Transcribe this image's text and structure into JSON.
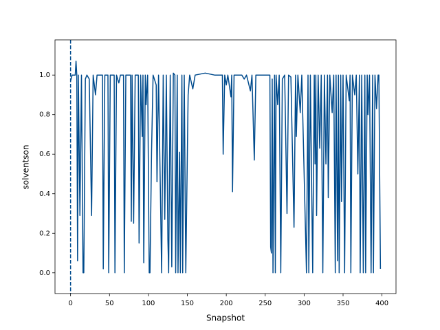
{
  "chart_data": {
    "type": "line",
    "xlabel": "Snapshot",
    "ylabel": "solventson",
    "x": [
      0,
      2,
      6,
      7,
      8,
      9,
      10,
      12,
      14,
      16,
      17,
      19,
      21,
      24,
      27,
      29,
      32,
      34,
      41,
      42,
      44,
      48,
      49,
      51,
      56,
      57,
      59,
      62,
      64,
      68,
      69,
      71,
      77,
      78,
      79,
      81,
      83,
      87,
      88,
      90,
      92,
      93,
      94,
      96,
      97,
      99,
      101,
      102,
      104,
      106,
      110,
      111,
      113,
      117,
      119,
      121,
      123,
      125,
      126,
      128,
      130,
      132,
      134,
      135,
      137,
      138,
      140,
      141,
      143,
      144,
      146,
      148,
      151,
      153,
      157,
      160,
      173,
      185,
      195,
      196,
      198,
      200,
      202,
      206,
      207,
      208,
      210,
      220,
      223,
      226,
      231,
      233,
      236,
      238,
      256,
      257,
      258,
      259,
      260,
      262,
      263,
      264,
      266,
      268,
      270,
      272,
      275,
      278,
      280,
      283,
      287,
      289,
      290,
      292,
      295,
      297,
      303,
      305,
      306,
      308,
      311,
      313,
      314,
      315,
      316,
      318,
      320,
      322,
      324,
      326,
      328,
      330,
      331,
      333,
      336,
      338,
      340,
      341,
      343,
      344,
      345,
      347,
      348,
      350,
      352,
      354,
      358,
      359,
      360,
      362,
      365,
      367,
      369,
      371,
      372,
      374,
      376,
      378,
      379,
      381,
      382,
      384,
      386,
      388,
      389,
      391,
      393,
      395,
      396,
      398
    ],
    "series": [
      {
        "color": "#004b8d",
        "values": [
          0.97,
          1.0,
          1.0,
          1.07,
          1.0,
          0.06,
          1.0,
          0.29,
          1.0,
          0.0,
          0.0,
          0.98,
          1.0,
          0.98,
          0.29,
          1.0,
          0.9,
          1.0,
          1.0,
          0.02,
          1.0,
          1.0,
          0.0,
          1.0,
          1.0,
          0.0,
          1.0,
          0.96,
          1.0,
          1.0,
          0.0,
          1.0,
          1.0,
          0.26,
          1.0,
          0.25,
          1.0,
          1.0,
          0.15,
          1.0,
          0.69,
          1.0,
          0.05,
          1.0,
          0.85,
          1.0,
          0.0,
          0.0,
          0.61,
          1.0,
          0.95,
          0.46,
          1.0,
          0.0,
          1.0,
          0.27,
          1.0,
          0.17,
          0.0,
          1.0,
          0.03,
          1.01,
          1.0,
          0.0,
          1.0,
          0.0,
          0.61,
          0.0,
          1.0,
          0.0,
          1.0,
          0.0,
          0.9,
          1.0,
          0.93,
          1.0,
          1.01,
          1.0,
          1.0,
          0.6,
          1.0,
          0.95,
          1.0,
          0.89,
          1.0,
          0.41,
          1.0,
          1.0,
          0.98,
          1.0,
          0.92,
          1.0,
          0.57,
          1.0,
          1.0,
          0.13,
          0.1,
          0.98,
          0.0,
          1.0,
          0.0,
          1.0,
          0.85,
          1.0,
          0.0,
          0.98,
          1.0,
          0.3,
          1.0,
          0.99,
          0.23,
          1.0,
          0.69,
          1.0,
          0.81,
          1.0,
          0.0,
          1.0,
          0.0,
          1.0,
          0.0,
          1.0,
          0.55,
          1.0,
          0.29,
          1.0,
          0.63,
          1.0,
          0.0,
          1.0,
          0.55,
          1.0,
          0.38,
          1.0,
          0.81,
          1.0,
          0.0,
          1.0,
          0.06,
          1.0,
          0.0,
          1.0,
          0.36,
          1.0,
          0.0,
          1.0,
          0.87,
          1.0,
          0.0,
          1.0,
          0.9,
          1.0,
          0.5,
          1.0,
          0.0,
          1.0,
          0.0,
          1.0,
          0.0,
          1.0,
          0.8,
          1.0,
          0.0,
          1.0,
          0.0,
          1.0,
          0.83,
          1.0,
          1.0,
          0.02
        ]
      }
    ],
    "vline": {
      "x": 0,
      "color": "#004b8d",
      "style": "dashed"
    },
    "xlim": [
      -20,
      418
    ],
    "ylim": [
      -0.105,
      1.178
    ],
    "xticks": [
      0,
      50,
      100,
      150,
      200,
      250,
      300,
      350,
      400
    ],
    "yticks": [
      {
        "value": 0,
        "label": "0.0"
      },
      0.2,
      0.4,
      0.6,
      0.8,
      {
        "value": 1,
        "label": "1.0"
      }
    ],
    "grid": false
  }
}
